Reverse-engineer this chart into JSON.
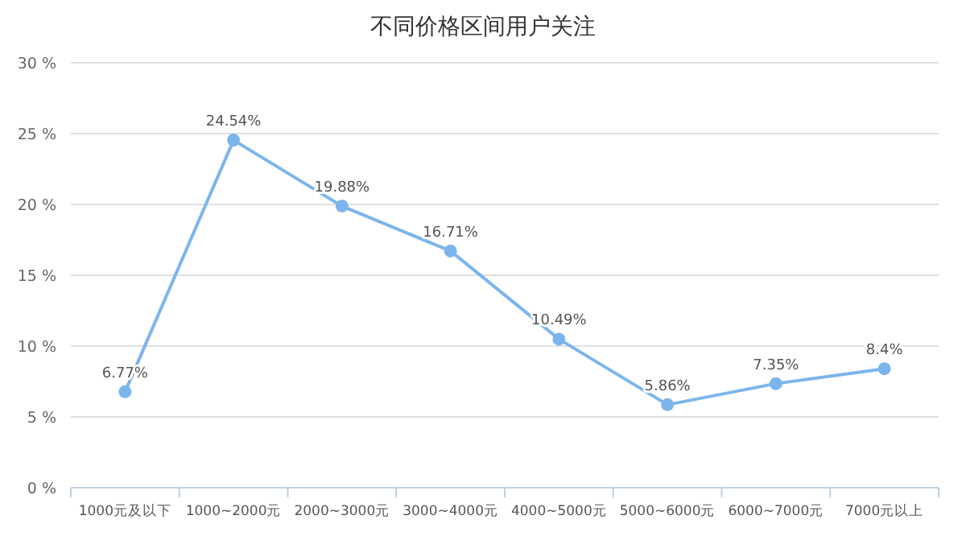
{
  "chart_data": {
    "type": "line",
    "title": "不同价格区间用户关注",
    "categories": [
      "1000元及以下",
      "1000~2000元",
      "2000~3000元",
      "3000~4000元",
      "4000~5000元",
      "5000~6000元",
      "6000~7000元",
      "7000元以上"
    ],
    "series": [
      {
        "color": "#7cb5ec",
        "values": [
          6.77,
          24.54,
          19.88,
          16.71,
          10.49,
          5.86,
          7.35,
          8.4
        ],
        "value_labels": [
          "6.77%",
          "24.54%",
          "19.88%",
          "16.71%",
          "10.49%",
          "5.86%",
          "7.35%",
          "8.4%"
        ]
      }
    ],
    "ylim": [
      0,
      30
    ],
    "yticks": [
      {
        "value": 0,
        "label": "0 %"
      },
      {
        "value": 5,
        "label": "5 %"
      },
      {
        "value": 10,
        "label": "10 %"
      },
      {
        "value": 15,
        "label": "15 %"
      },
      {
        "value": 20,
        "label": "20 %"
      },
      {
        "value": 25,
        "label": "25 %"
      },
      {
        "value": 30,
        "label": "30 %"
      }
    ],
    "grid": "y",
    "marker": "circle",
    "line_style": "solid"
  }
}
